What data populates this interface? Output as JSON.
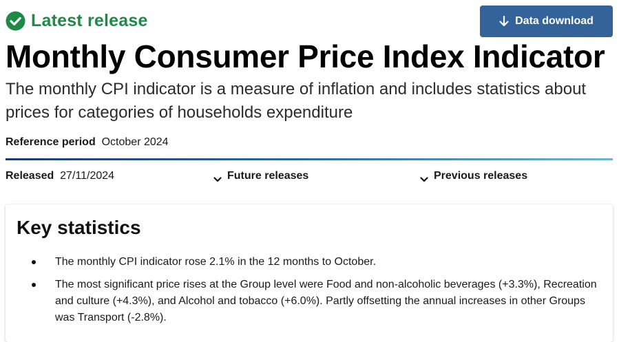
{
  "status": {
    "label": "Latest release",
    "icon": "check-circle-icon",
    "color": "#1f8a46"
  },
  "download": {
    "label": "Data download",
    "icon": "arrow-down-icon",
    "color": "#336398"
  },
  "title": "Monthly Consumer Price Index Indicator",
  "subtitle": "The monthly CPI indicator is a measure of inflation and includes statistics about prices for categories of households expenditure",
  "reference_period": {
    "label": "Reference period",
    "value": "October 2024"
  },
  "released": {
    "label": "Released",
    "value": "27/11/2024"
  },
  "toggles": {
    "future": "Future releases",
    "previous": "Previous releases",
    "icon": "chevron-down-icon"
  },
  "key_statistics": {
    "heading": "Key statistics",
    "items": [
      "The monthly CPI indicator rose 2.1% in the 12 months to October.",
      "The most significant price rises at the Group level were Food and non-alcoholic beverages (+3.3%), Recreation and culture (+4.3%), and Alcohol and tobacco (+6.0%). Partly offsetting the annual increases in other Groups was Transport (-2.8%)."
    ]
  }
}
